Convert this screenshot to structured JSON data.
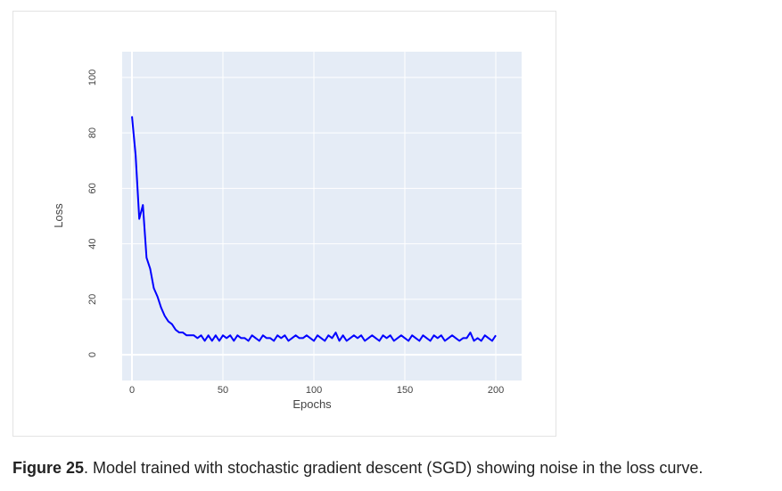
{
  "chart_data": {
    "type": "line",
    "x_label": "Epochs",
    "y_label": "Loss",
    "x": [
      0,
      2,
      4,
      6,
      8,
      10,
      12,
      14,
      16,
      18,
      20,
      22,
      24,
      26,
      28,
      30,
      32,
      34,
      36,
      38,
      40,
      42,
      44,
      46,
      48,
      50,
      52,
      54,
      56,
      58,
      60,
      62,
      64,
      66,
      68,
      70,
      72,
      74,
      76,
      78,
      80,
      82,
      84,
      86,
      88,
      90,
      92,
      94,
      96,
      98,
      100,
      102,
      104,
      106,
      108,
      110,
      112,
      114,
      116,
      118,
      120,
      122,
      124,
      126,
      128,
      130,
      132,
      134,
      136,
      138,
      140,
      142,
      144,
      146,
      148,
      150,
      152,
      154,
      156,
      158,
      160,
      162,
      164,
      166,
      168,
      170,
      172,
      174,
      176,
      178,
      180,
      182,
      184,
      186,
      188,
      190,
      192,
      194,
      196,
      198,
      200
    ],
    "series": [
      {
        "color": "#0000ff",
        "values": [
          86,
          72,
          49,
          54,
          35,
          31,
          24,
          21,
          17,
          14,
          12,
          11,
          9,
          8,
          8,
          7,
          7,
          7,
          6,
          7,
          5,
          7,
          5,
          7,
          5,
          7,
          6,
          7,
          5,
          7,
          6,
          6,
          5,
          7,
          6,
          5,
          7,
          6,
          6,
          5,
          7,
          6,
          7,
          5,
          6,
          7,
          6,
          6,
          7,
          6,
          5,
          7,
          6,
          5,
          7,
          6,
          8,
          5,
          7,
          5,
          6,
          7,
          6,
          7,
          5,
          6,
          7,
          6,
          5,
          7,
          6,
          7,
          5,
          6,
          7,
          6,
          5,
          7,
          6,
          5,
          7,
          6,
          5,
          7,
          6,
          7,
          5,
          6,
          7,
          6,
          5,
          6,
          6,
          8,
          5,
          6,
          5,
          7,
          6,
          5,
          7
        ]
      }
    ],
    "xlim": [
      -5.4,
      214.2
    ],
    "ylim": [
      -9.3,
      109.3
    ],
    "xticks": [
      0,
      50,
      100,
      150,
      200
    ],
    "yticks": [
      0,
      20,
      40,
      60,
      80,
      100
    ],
    "grid": true,
    "legend": false
  },
  "caption": {
    "label": "Figure 25",
    "text": ". Model trained with stochastic gradient descent (SGD) showing noise in the loss curve."
  }
}
